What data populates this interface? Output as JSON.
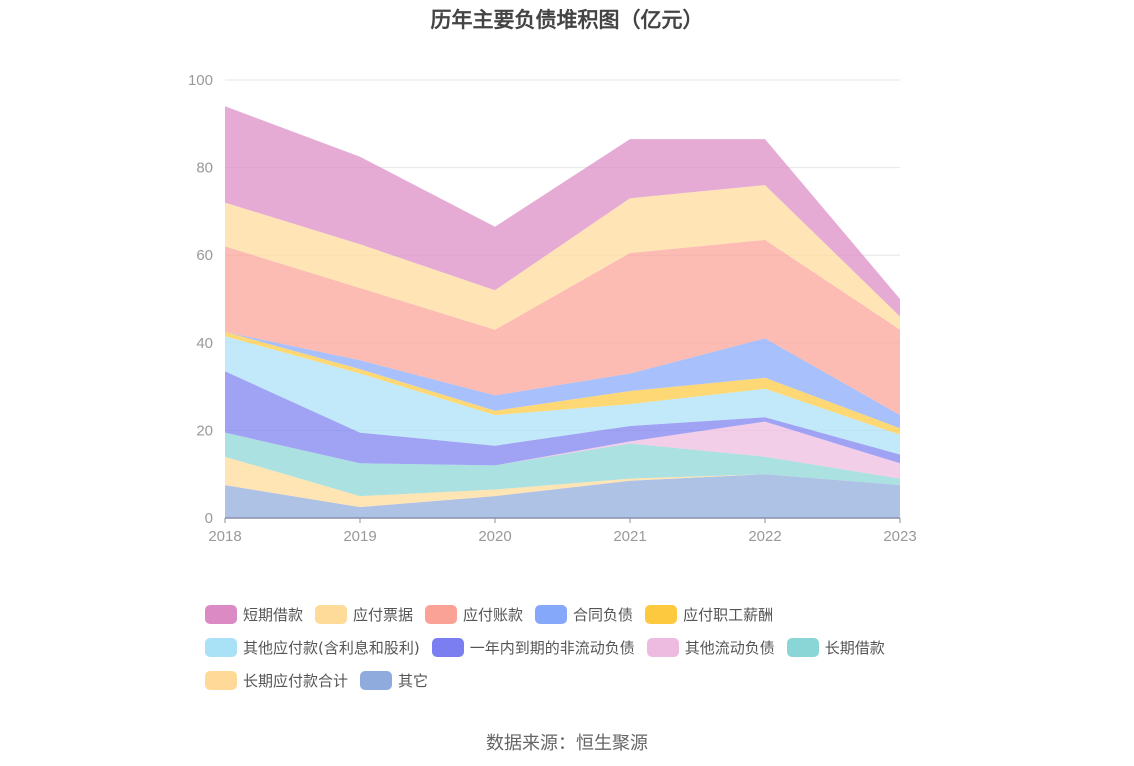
{
  "chart_data": {
    "type": "area",
    "stacked": true,
    "title": "历年主要负债堆积图（亿元）",
    "x": [
      "2018",
      "2019",
      "2020",
      "2021",
      "2022",
      "2023"
    ],
    "ylim": [
      0,
      100
    ],
    "yticks": [
      0,
      20,
      40,
      60,
      80,
      100
    ],
    "grid": true,
    "legend_position": "bottom",
    "series": [
      {
        "name": "其它",
        "color": "#8faadc",
        "values": [
          7.5,
          2.5,
          5,
          8.5,
          10,
          7.5
        ]
      },
      {
        "name": "长期应付款合计",
        "color": "#ffd997",
        "values": [
          6.5,
          2.5,
          1.5,
          0.5,
          0,
          0
        ]
      },
      {
        "name": "长期借款",
        "color": "#8ad6d6",
        "values": [
          5.5,
          7.5,
          5.5,
          8,
          4,
          1.5
        ]
      },
      {
        "name": "其他流动负债",
        "color": "#edbbdf",
        "values": [
          0,
          0,
          0,
          0.5,
          8,
          3.5
        ]
      },
      {
        "name": "一年内到期的非流动负债",
        "color": "#7b7ef0",
        "values": [
          14,
          7,
          4.5,
          3.5,
          1,
          2
        ]
      },
      {
        "name": "其他应付款(含利息和股利)",
        "color": "#a9e1f7",
        "values": [
          8,
          13.5,
          7,
          5,
          6.5,
          4.5
        ]
      },
      {
        "name": "应付职工薪酬",
        "color": "#fdc93e",
        "values": [
          1,
          1,
          1,
          3,
          2.5,
          1.5
        ]
      },
      {
        "name": "合同负债",
        "color": "#86a8fa",
        "values": [
          0,
          2,
          3.5,
          4,
          9,
          3
        ]
      },
      {
        "name": "应付账款",
        "color": "#fba296",
        "values": [
          19.5,
          16.5,
          15,
          27.5,
          22.5,
          19.5
        ]
      },
      {
        "name": "应付票据",
        "color": "#ffdb9a",
        "values": [
          10,
          10,
          9,
          12.5,
          12.5,
          3
        ]
      },
      {
        "name": "短期借款",
        "color": "#db8ac4",
        "values": [
          22,
          20,
          14.5,
          13.5,
          10.5,
          4
        ]
      }
    ]
  },
  "legend": {
    "rows": [
      [
        {
          "label": "短期借款",
          "color": "#db8ac4"
        },
        {
          "label": "应付票据",
          "color": "#ffdb9a"
        },
        {
          "label": "应付账款",
          "color": "#fba296"
        },
        {
          "label": "合同负债",
          "color": "#86a8fa"
        },
        {
          "label": "应付职工薪酬",
          "color": "#fdc93e"
        }
      ],
      [
        {
          "label": "其他应付款(含利息和股利)",
          "color": "#a9e1f7"
        },
        {
          "label": "一年内到期的非流动负债",
          "color": "#7b7ef0"
        },
        {
          "label": "其他流动负债",
          "color": "#edbbdf"
        },
        {
          "label": "长期借款",
          "color": "#8ad6d6"
        }
      ],
      [
        {
          "label": "长期应付款合计",
          "color": "#ffd997"
        },
        {
          "label": "其它",
          "color": "#8faadc"
        }
      ]
    ]
  },
  "source": "数据来源：恒生聚源"
}
